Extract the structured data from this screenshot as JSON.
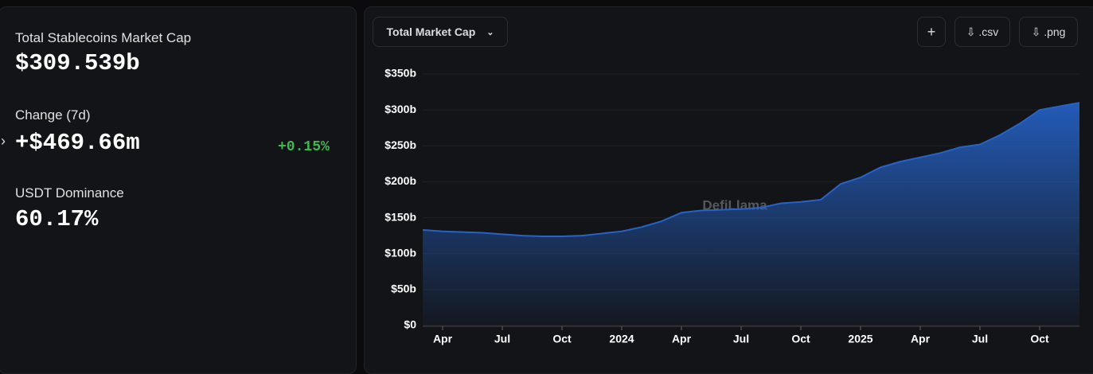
{
  "stats": [
    {
      "label": "Total Stablecoins Market Cap",
      "value": "$309.539b"
    },
    {
      "label": "Change (7d)",
      "value": "+$469.66m",
      "change": "+0.15%"
    },
    {
      "label": "USDT Dominance",
      "value": "60.17%"
    }
  ],
  "toolbar": {
    "selector": "Total Market Cap",
    "add": "+",
    "csv": ".csv",
    "png": ".png"
  },
  "watermark": "DefiLlama",
  "chart_data": {
    "type": "area",
    "color": "#2563c9",
    "categories": [
      null,
      "Apr",
      null,
      null,
      "Jul",
      null,
      null,
      "Oct",
      null,
      null,
      "2024",
      null,
      null,
      "Apr",
      null,
      null,
      "Jul",
      null,
      null,
      "Oct",
      null,
      null,
      "2025",
      null,
      null,
      "Apr",
      null,
      null,
      "Jul",
      null,
      null,
      "Oct",
      null,
      null
    ],
    "values": [
      133,
      131,
      130,
      129,
      127,
      125,
      124,
      124,
      125,
      128,
      131,
      137,
      145,
      157,
      160,
      161,
      162,
      164,
      170,
      172,
      175,
      197,
      206,
      220,
      228,
      234,
      240,
      248,
      252,
      265,
      281,
      300,
      305,
      310
    ],
    "ylim": [
      0,
      350
    ],
    "yticks": [
      {
        "value": 0,
        "label": "$0"
      },
      {
        "value": 50,
        "label": "$50b"
      },
      {
        "value": 100,
        "label": "$100b"
      },
      {
        "value": 150,
        "label": "$150b"
      },
      {
        "value": 200,
        "label": "$200b"
      },
      {
        "value": 250,
        "label": "$250b"
      },
      {
        "value": 300,
        "label": "$300b"
      },
      {
        "value": 350,
        "label": "$350b"
      }
    ],
    "grid": true
  }
}
